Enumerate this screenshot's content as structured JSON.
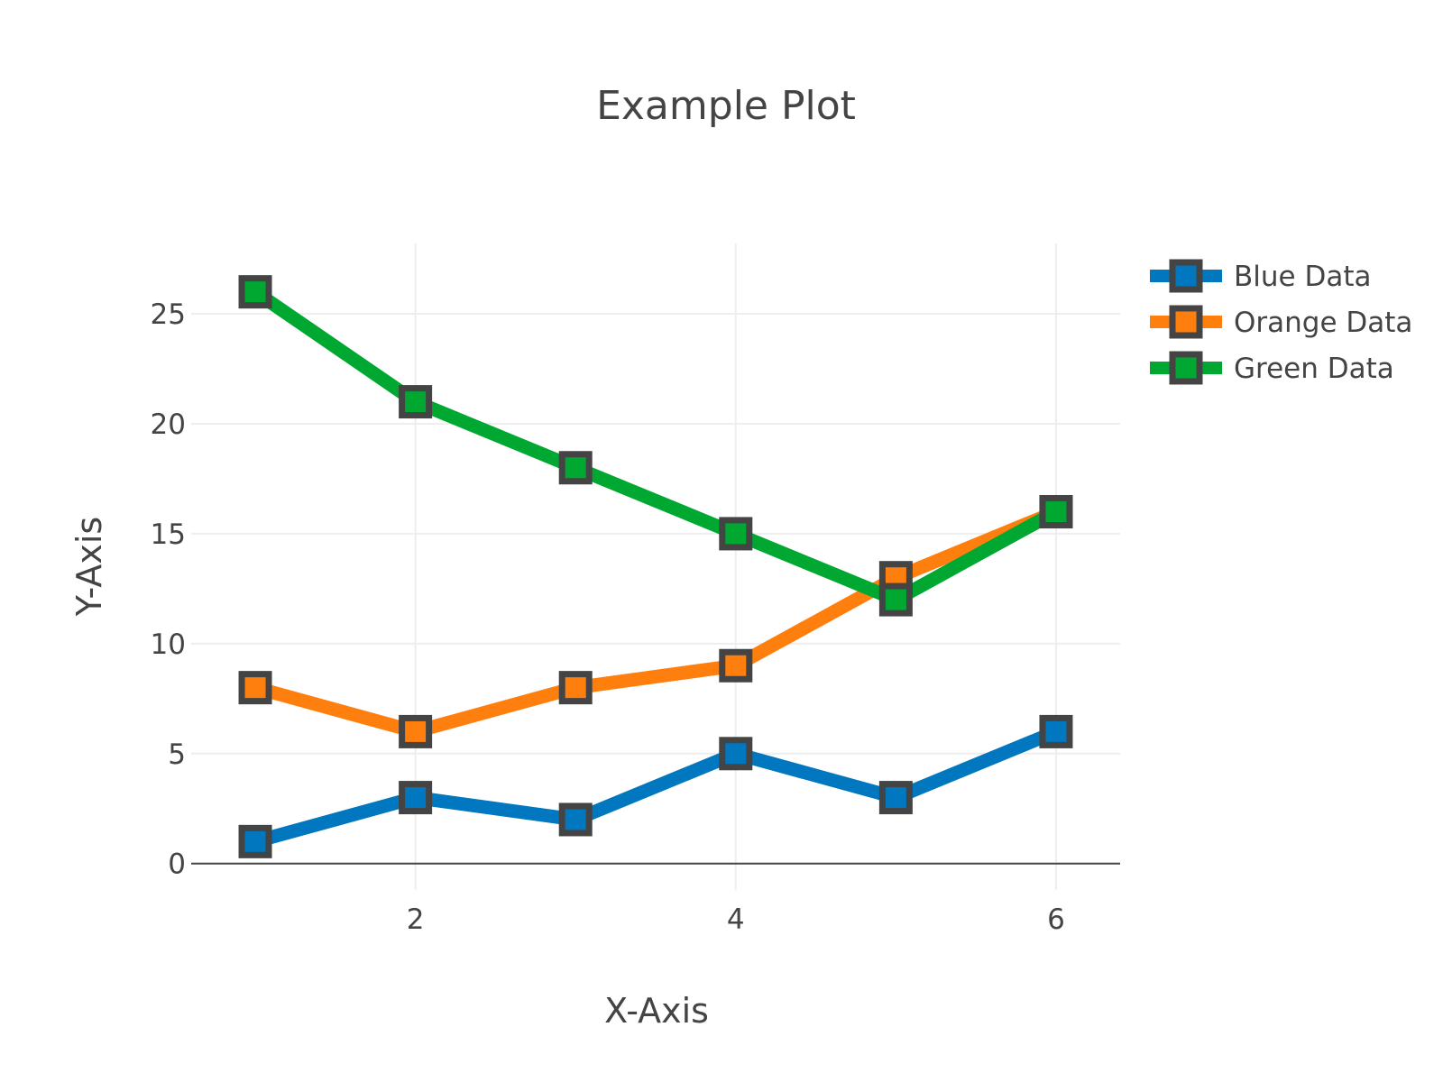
{
  "chart_data": {
    "type": "line",
    "title": "Example Plot",
    "xlabel": "X-Axis",
    "ylabel": "Y-Axis",
    "x": [
      1,
      2,
      3,
      4,
      5,
      6
    ],
    "xlim": [
      0.6,
      6.4
    ],
    "ylim": [
      -1.2,
      28.2
    ],
    "xticks": [
      2,
      4,
      6
    ],
    "yticks": [
      0,
      5,
      10,
      15,
      20,
      25
    ],
    "grid": true,
    "legend_position": "top-right",
    "series": [
      {
        "name": "Blue Data",
        "color": "#0077be",
        "values": [
          1,
          3,
          2,
          5,
          3,
          6
        ]
      },
      {
        "name": "Orange Data",
        "color": "#ff7f0e",
        "values": [
          8,
          6,
          8,
          9,
          13,
          16
        ]
      },
      {
        "name": "Green Data",
        "color": "#00a832",
        "values": [
          26,
          21,
          18,
          15,
          12,
          16
        ]
      }
    ],
    "marker": {
      "symbol": "square",
      "edge_color": "#444444"
    }
  }
}
